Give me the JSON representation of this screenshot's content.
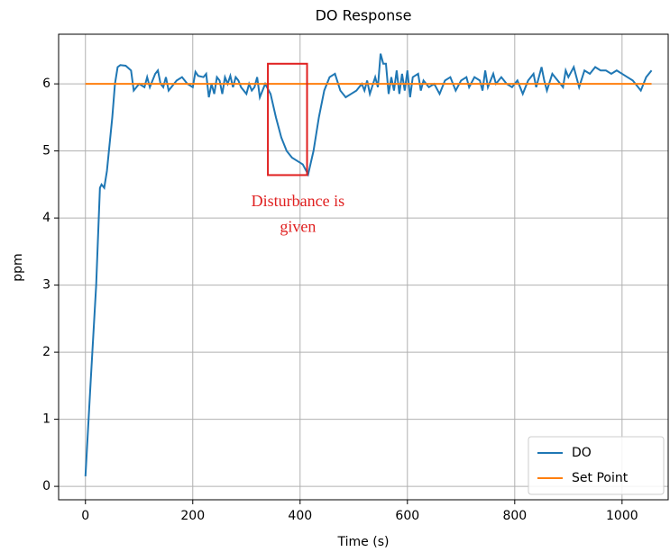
{
  "chart_data": {
    "type": "line",
    "title": "DO Response",
    "xlabel": "Time (s)",
    "ylabel": "ppm",
    "xlim": [
      -50,
      1086
    ],
    "ylim": [
      -0.2,
      6.74
    ],
    "xticks": [
      0,
      200,
      400,
      600,
      800,
      1000
    ],
    "yticks": [
      0,
      1,
      2,
      3,
      4,
      5,
      6
    ],
    "grid": true,
    "legend": "lower right",
    "series": [
      {
        "name": "DO",
        "color": "#1f77b4",
        "x": [
          0,
          10,
          20,
          27,
          30,
          35,
          40,
          50,
          55,
          60,
          65,
          75,
          85,
          90,
          95,
          100,
          110,
          115,
          120,
          130,
          135,
          140,
          145,
          150,
          155,
          160,
          170,
          180,
          190,
          200,
          205,
          210,
          220,
          225,
          230,
          235,
          240,
          245,
          250,
          255,
          260,
          265,
          270,
          275,
          280,
          285,
          290,
          300,
          305,
          310,
          315,
          320,
          325,
          335,
          345,
          355,
          365,
          375,
          385,
          395,
          405,
          415,
          425,
          435,
          445,
          455,
          465,
          475,
          485,
          495,
          505,
          515,
          520,
          525,
          530,
          540,
          545,
          550,
          555,
          560,
          565,
          570,
          575,
          580,
          585,
          590,
          595,
          600,
          605,
          610,
          620,
          625,
          630,
          640,
          650,
          660,
          670,
          680,
          690,
          700,
          710,
          715,
          725,
          735,
          740,
          745,
          750,
          760,
          765,
          775,
          785,
          795,
          805,
          815,
          825,
          835,
          840,
          850,
          855,
          860,
          870,
          880,
          890,
          895,
          900,
          910,
          920,
          930,
          940,
          950,
          960,
          970,
          980,
          990,
          1000,
          1010,
          1020,
          1035,
          1045,
          1055
        ],
        "values": [
          0.15,
          1.6,
          3.0,
          4.45,
          4.5,
          4.45,
          4.7,
          5.5,
          6.0,
          6.25,
          6.28,
          6.27,
          6.2,
          5.9,
          5.95,
          6.0,
          5.95,
          6.1,
          5.95,
          6.15,
          6.2,
          6.0,
          5.95,
          6.1,
          5.9,
          5.95,
          6.05,
          6.1,
          6.0,
          5.95,
          6.18,
          6.12,
          6.1,
          6.15,
          5.8,
          6.0,
          5.85,
          6.1,
          6.05,
          5.85,
          6.1,
          6.0,
          6.12,
          5.95,
          6.1,
          6.05,
          5.95,
          5.85,
          6.0,
          5.9,
          5.95,
          6.1,
          5.8,
          6.0,
          5.85,
          5.5,
          5.2,
          5.0,
          4.9,
          4.85,
          4.8,
          4.65,
          5.0,
          5.5,
          5.9,
          6.1,
          6.15,
          5.9,
          5.8,
          5.85,
          5.9,
          6.0,
          5.9,
          6.05,
          5.85,
          6.1,
          5.95,
          6.45,
          6.3,
          6.3,
          5.85,
          6.1,
          5.9,
          6.2,
          5.85,
          6.15,
          5.9,
          6.2,
          5.8,
          6.1,
          6.15,
          5.9,
          6.05,
          5.95,
          6.0,
          5.85,
          6.05,
          6.1,
          5.9,
          6.05,
          6.1,
          5.95,
          6.1,
          6.05,
          5.9,
          6.2,
          5.95,
          6.15,
          6.0,
          6.1,
          6.0,
          5.95,
          6.05,
          5.85,
          6.05,
          6.15,
          5.95,
          6.25,
          6.05,
          5.9,
          6.15,
          6.05,
          5.95,
          6.2,
          6.1,
          6.25,
          5.95,
          6.2,
          6.15,
          6.25,
          6.2,
          6.2,
          6.15,
          6.2,
          6.15,
          6.1,
          6.05,
          5.9,
          6.1,
          6.2
        ]
      },
      {
        "name": "Set Point",
        "color": "#ff7f0e",
        "x": [
          0,
          1055
        ],
        "values": [
          6,
          6
        ]
      }
    ],
    "highlight": {
      "x": [
        340,
        413
      ],
      "y": [
        4.64,
        6.3
      ],
      "color": "#e02020"
    },
    "annotation": {
      "lines": [
        "Disturbance is",
        "given"
      ],
      "x": 396,
      "y": [
        4.23,
        3.85
      ],
      "color": "#e02020"
    }
  }
}
